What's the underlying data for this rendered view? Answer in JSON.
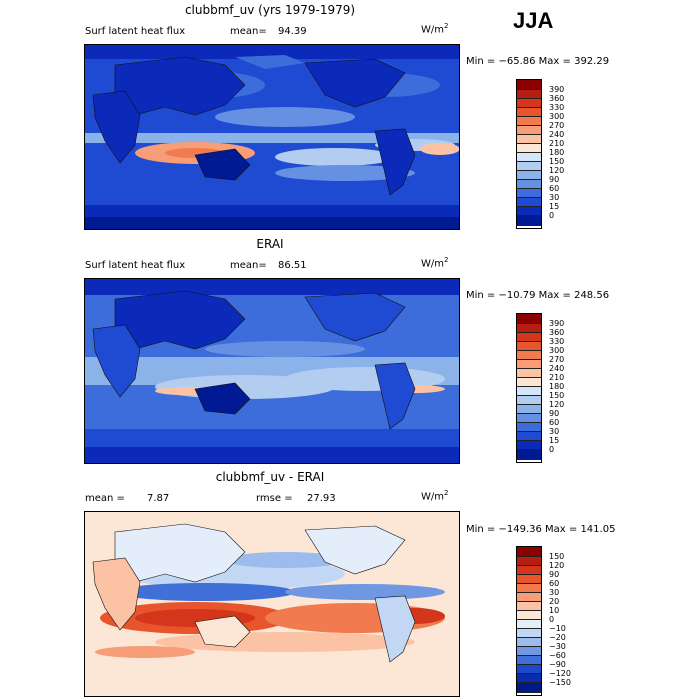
{
  "season": "JJA",
  "panels": [
    {
      "title": "clubbmf_uv (yrs 1979-1979)",
      "variable": "Surf latent heat flux",
      "mean_label": "mean=",
      "mean_value": "94.39",
      "units_base": "W/m",
      "units_exp": "2",
      "range": "Min = −65.86 Max = 392.29",
      "colorbar_labels": [
        "390",
        "360",
        "330",
        "300",
        "270",
        "240",
        "210",
        "180",
        "150",
        "120",
        "90",
        "60",
        "30",
        "15",
        "0"
      ],
      "colorbar_colors": [
        "#8b0000",
        "#b51e10",
        "#d4361c",
        "#e8542c",
        "#f17a4f",
        "#f79d77",
        "#fbc2a4",
        "#fce6d6",
        "#d6e6f8",
        "#b2cdf0",
        "#8cb2ea",
        "#6691e3",
        "#3c6ddb",
        "#1f4ad2",
        "#0b2aba",
        "#001a94"
      ],
      "terrain": "model"
    },
    {
      "title": "ERAI",
      "variable": "Surf latent heat flux",
      "mean_label": "mean=",
      "mean_value": "86.51",
      "units_base": "W/m",
      "units_exp": "2",
      "range": "Min = −10.79 Max = 248.56",
      "colorbar_labels": [
        "390",
        "360",
        "330",
        "300",
        "270",
        "240",
        "210",
        "180",
        "150",
        "120",
        "90",
        "60",
        "30",
        "15",
        "0"
      ],
      "colorbar_colors": [
        "#8b0000",
        "#b51e10",
        "#d4361c",
        "#e8542c",
        "#f17a4f",
        "#f79d77",
        "#fbc2a4",
        "#fce6d6",
        "#d6e6f8",
        "#b2cdf0",
        "#8cb2ea",
        "#6691e3",
        "#3c6ddb",
        "#1f4ad2",
        "#0b2aba",
        "#001a94"
      ],
      "terrain": "obs"
    },
    {
      "title": "clubbmf_uv - ERAI",
      "mean_label": "mean =",
      "mean_value": "7.87",
      "rmse_label": "rmse =",
      "rmse_value": "27.93",
      "units_base": "W/m",
      "units_exp": "2",
      "range": "Min = −149.36 Max = 141.05",
      "colorbar_labels": [
        "150",
        "120",
        "90",
        "60",
        "30",
        "20",
        "10",
        "0",
        "−10",
        "−20",
        "−30",
        "−60",
        "−90",
        "−120",
        "−150"
      ],
      "colorbar_colors": [
        "#8b0000",
        "#b51e10",
        "#d4361c",
        "#e8542c",
        "#f17a4f",
        "#f79d77",
        "#fbc2a4",
        "#fce6d6",
        "#e4eefb",
        "#c2d7f3",
        "#9bbcec",
        "#6f97e2",
        "#416fd8",
        "#1e49cb",
        "#0a2ab0",
        "#001a8a"
      ],
      "terrain": "diff"
    }
  ]
}
